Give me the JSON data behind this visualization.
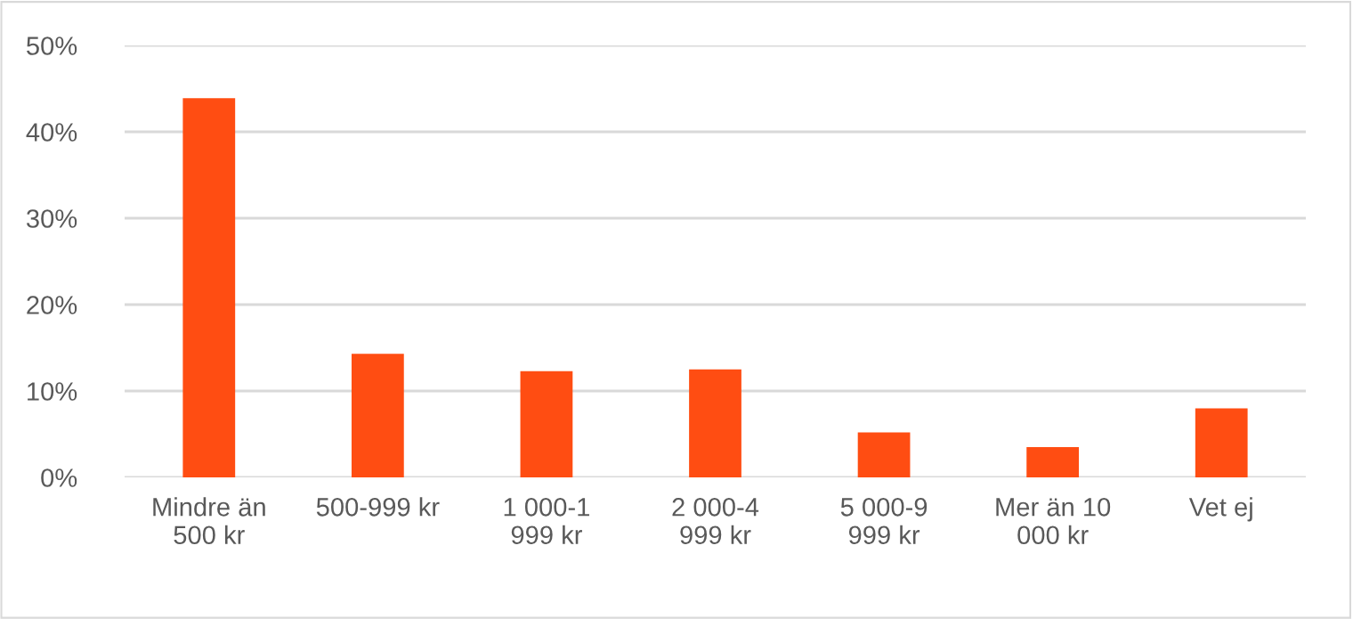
{
  "chart_data": {
    "type": "bar",
    "categories": [
      "Mindre än\n500 kr",
      "500-999 kr",
      "1 000-1\n999 kr",
      "2 000-4\n999 kr",
      "5 000-9\n999 kr",
      "Mer än 10\n000 kr",
      "Vet ej"
    ],
    "values": [
      43.9,
      14.3,
      12.3,
      12.5,
      5.2,
      3.5,
      8.0
    ],
    "color": "#ff4d12",
    "ylim": [
      0,
      50
    ],
    "yticks": [
      {
        "value": 0,
        "label": "0%"
      },
      {
        "value": 10,
        "label": "10%"
      },
      {
        "value": 20,
        "label": "20%"
      },
      {
        "value": 30,
        "label": "30%"
      },
      {
        "value": 40,
        "label": "40%"
      },
      {
        "value": 50,
        "label": "50%"
      }
    ],
    "grid": "y"
  }
}
